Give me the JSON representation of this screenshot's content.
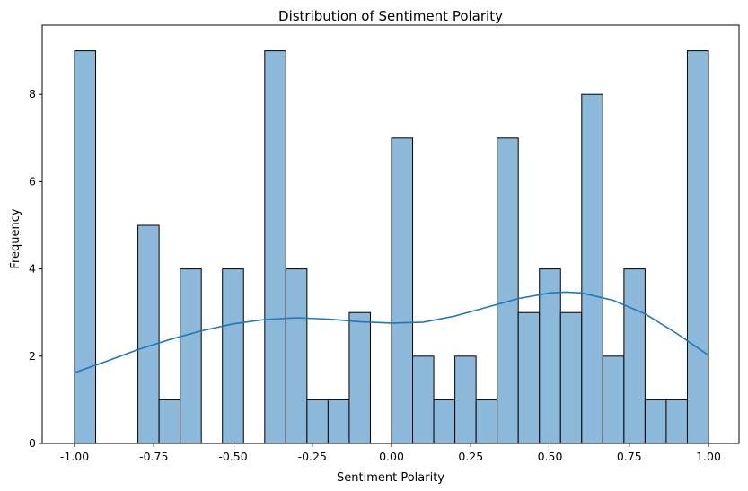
{
  "chart_data": {
    "type": "bar",
    "title": "Distribution of Sentiment Polarity",
    "xlabel": "Sentiment Polarity",
    "ylabel": "Frequency",
    "xlim": [
      -1.0,
      1.0
    ],
    "ylim": [
      0,
      9
    ],
    "x_ticks": [
      "-1.00",
      "-0.75",
      "-0.50",
      "-0.25",
      "0.00",
      "0.25",
      "0.50",
      "0.75",
      "1.00"
    ],
    "y_ticks": [
      "0",
      "2",
      "4",
      "6",
      "8"
    ],
    "bins": 30,
    "values": [
      9,
      0,
      0,
      5,
      1,
      4,
      0,
      4,
      0,
      9,
      4,
      1,
      1,
      3,
      0,
      7,
      2,
      1,
      2,
      1,
      7,
      3,
      4,
      3,
      8,
      2,
      4,
      1,
      1,
      9
    ],
    "kde": {
      "x": [
        -1.0,
        -0.9,
        -0.8,
        -0.7,
        -0.6,
        -0.5,
        -0.4,
        -0.3,
        -0.2,
        -0.1,
        0.0,
        0.1,
        0.2,
        0.3,
        0.4,
        0.5,
        0.55,
        0.6,
        0.7,
        0.8,
        0.9,
        1.0
      ],
      "y": [
        1.62,
        1.88,
        2.15,
        2.38,
        2.58,
        2.74,
        2.84,
        2.88,
        2.85,
        2.79,
        2.76,
        2.78,
        2.92,
        3.12,
        3.32,
        3.45,
        3.47,
        3.45,
        3.28,
        2.97,
        2.52,
        2.02
      ]
    },
    "grid": false,
    "colors": {
      "bar_fill": "#8cb8d9",
      "bar_edge": "#000000",
      "kde_line": "#1f77b4"
    }
  }
}
